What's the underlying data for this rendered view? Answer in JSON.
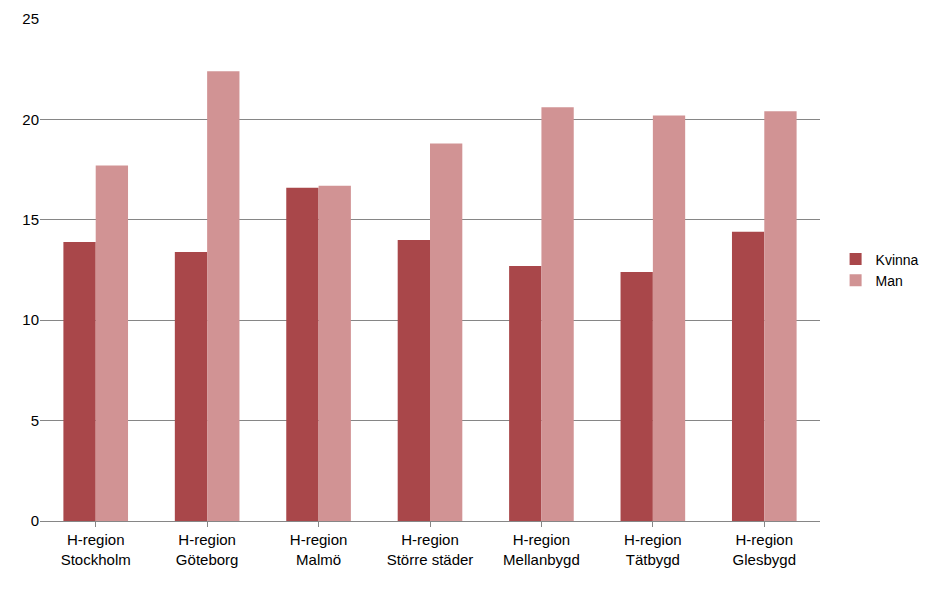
{
  "chart_data": {
    "type": "bar",
    "categories": [
      "H-region Stockholm",
      "H-region Göteborg",
      "H-region Malmö",
      "H-region Större städer",
      "H-region Mellanbygd",
      "H-region Tätbygd",
      "H-region Glesbygd"
    ],
    "series": [
      {
        "name": "Kvinna",
        "color": "#a9474a",
        "values": [
          13.9,
          13.4,
          16.6,
          14.0,
          12.7,
          12.4,
          14.4
        ]
      },
      {
        "name": "Man",
        "color": "#d19394",
        "values": [
          17.7,
          22.4,
          16.7,
          18.8,
          20.6,
          20.2,
          20.4
        ]
      }
    ],
    "ylim": [
      0,
      25
    ],
    "yticks": [
      0,
      5,
      10,
      15,
      20,
      25
    ],
    "grid": true,
    "legend": "right"
  }
}
